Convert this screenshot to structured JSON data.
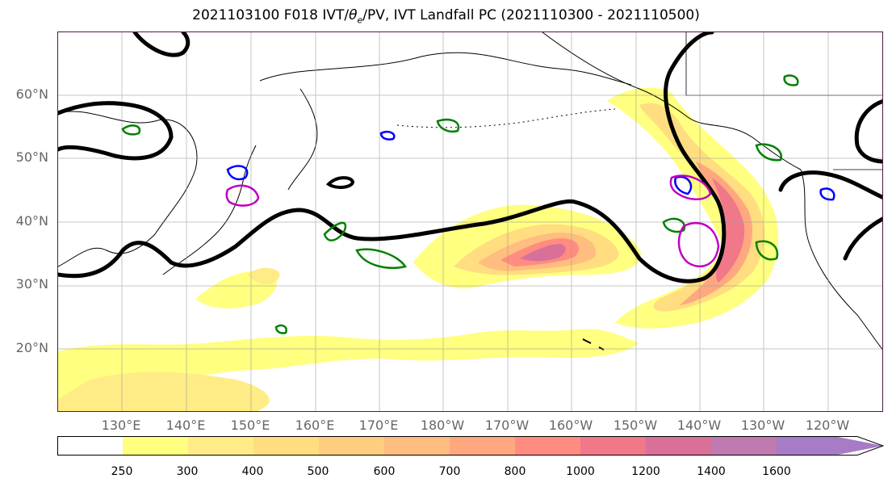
{
  "title_pre": "2021103100 F018 IVT/",
  "title_theta": "θ",
  "title_sub": "e",
  "title_post": "/PV, IVT Landfall PC (2021110300 - 2021110500)",
  "lat_labels": [
    "60°N",
    "50°N",
    "40°N",
    "30°N",
    "20°N"
  ],
  "lon_labels": [
    "130°E",
    "140°E",
    "150°E",
    "160°E",
    "170°E",
    "180°W",
    "170°W",
    "160°W",
    "150°W",
    "140°W",
    "130°W",
    "120°W"
  ],
  "colorbar": {
    "ticks": [
      "250",
      "300",
      "400",
      "500",
      "600",
      "700",
      "800",
      "1000",
      "1200",
      "1400",
      "1600"
    ],
    "colors": [
      "#ffffff",
      "#ffff80",
      "#ffec86",
      "#ffdd80",
      "#ffcd80",
      "#ffbd80",
      "#ffa880",
      "#ff8c80",
      "#f07888",
      "#d87098",
      "#c07ab0",
      "#a67cc6"
    ]
  },
  "contour_colors": {
    "theta_e": "#000000",
    "pv_positive": "#008000",
    "pv_negative": "#0000ff",
    "landfall": "#c000c0"
  }
}
